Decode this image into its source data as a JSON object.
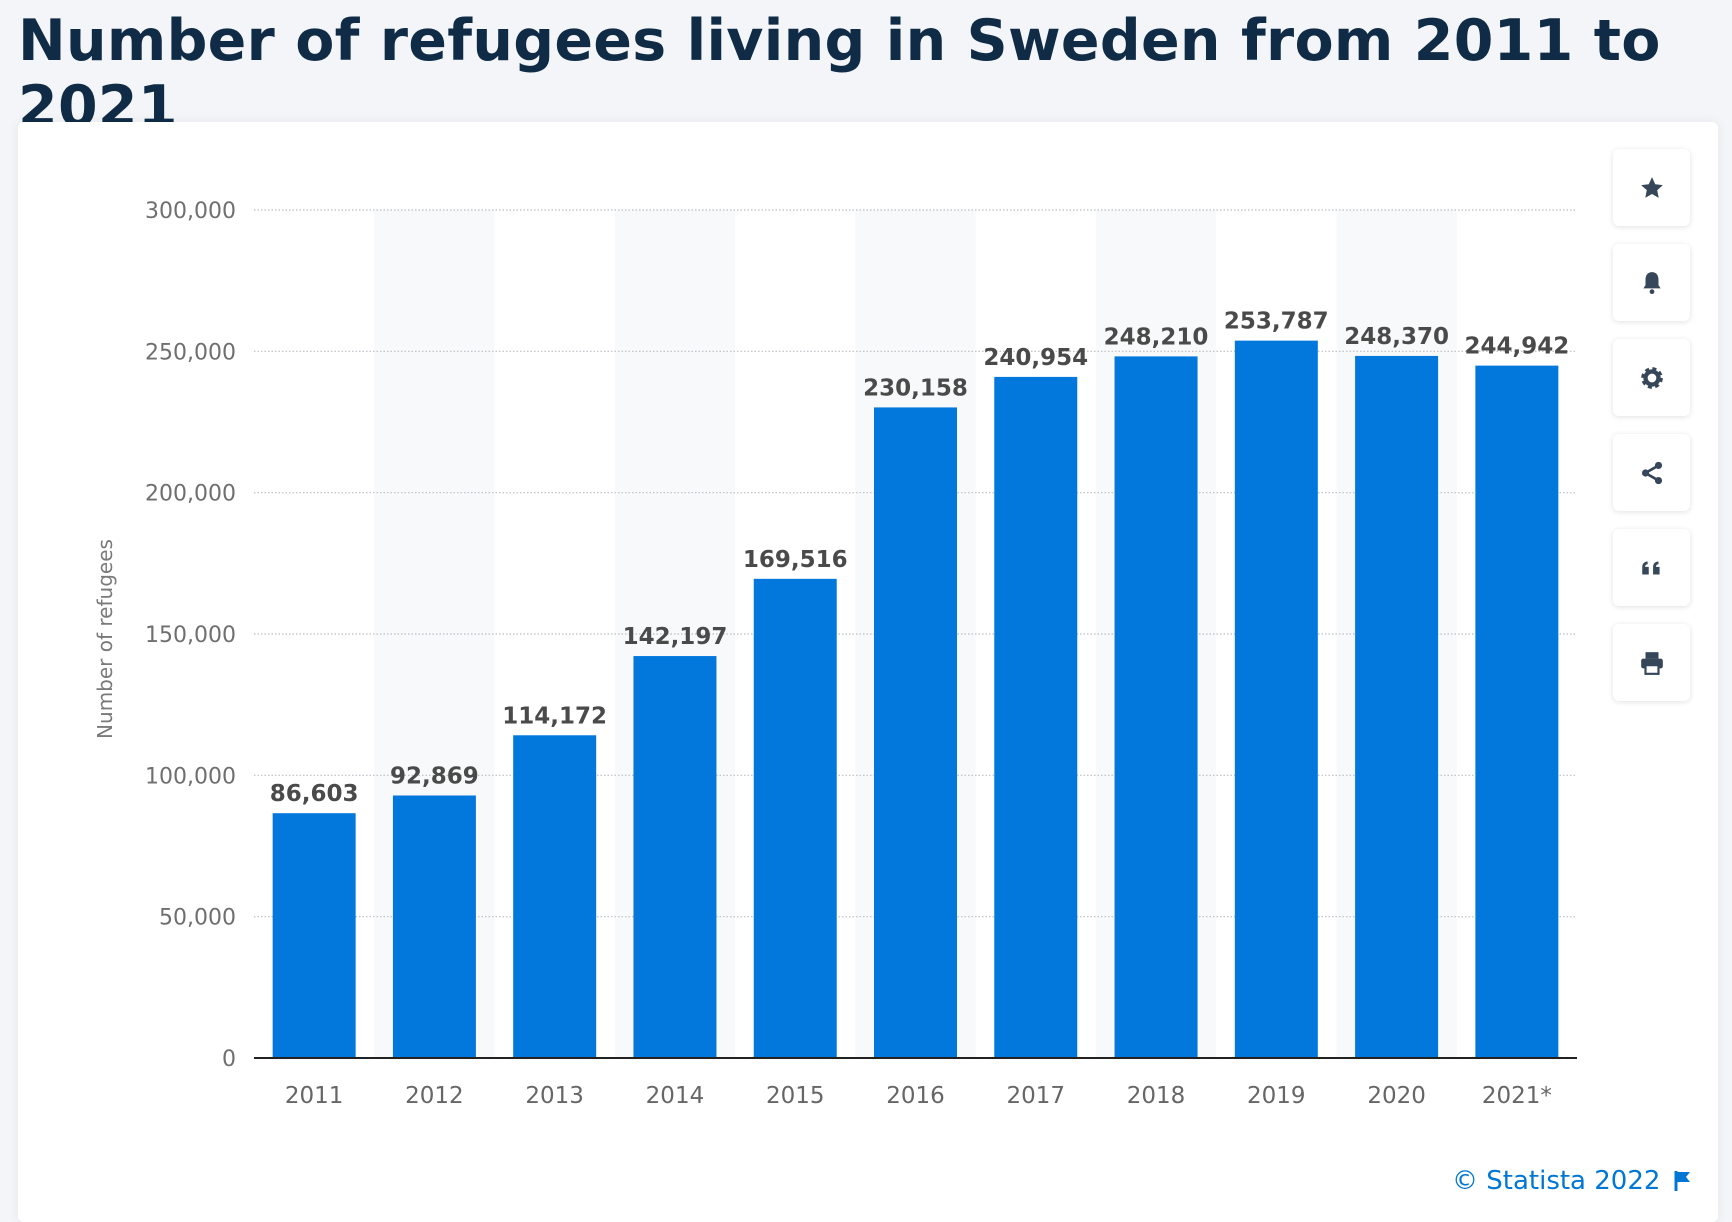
{
  "title": "Number of refugees living in Sweden from 2011 to 2021",
  "credit": "© Statista 2022",
  "colors": {
    "bar": "#0277dc",
    "title": "#0f2b46",
    "credit": "#0077d4"
  },
  "side_buttons": [
    "star-icon",
    "bell-icon",
    "gear-icon",
    "share-icon",
    "quote-icon",
    "print-icon"
  ],
  "chart_data": {
    "type": "bar",
    "title": "",
    "xlabel": "",
    "ylabel": "Number of refugees",
    "categories": [
      "2011",
      "2012",
      "2013",
      "2014",
      "2015",
      "2016",
      "2017",
      "2018",
      "2019",
      "2020",
      "2021*"
    ],
    "values": [
      86603,
      92869,
      114172,
      142197,
      169516,
      230158,
      240954,
      248210,
      253787,
      248370,
      244942
    ],
    "data_labels": [
      "86,603",
      "92,869",
      "114,172",
      "142,197",
      "169,516",
      "230,158",
      "240,954",
      "248,210",
      "253,787",
      "248,370",
      "244,942"
    ],
    "ylim": [
      0,
      300000
    ],
    "yticks": [
      0,
      50000,
      100000,
      150000,
      200000,
      250000,
      300000
    ],
    "ytick_labels": [
      "0",
      "50,000",
      "100,000",
      "150,000",
      "200,000",
      "250,000",
      "300,000"
    ],
    "grid": true
  }
}
